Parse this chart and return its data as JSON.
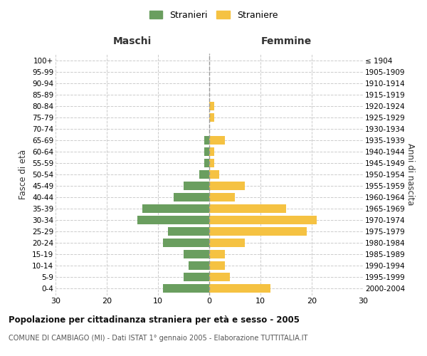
{
  "age_groups": [
    "0-4",
    "5-9",
    "10-14",
    "15-19",
    "20-24",
    "25-29",
    "30-34",
    "35-39",
    "40-44",
    "45-49",
    "50-54",
    "55-59",
    "60-64",
    "65-69",
    "70-74",
    "75-79",
    "80-84",
    "85-89",
    "90-94",
    "95-99",
    "100+"
  ],
  "birth_years": [
    "2000-2004",
    "1995-1999",
    "1990-1994",
    "1985-1989",
    "1980-1984",
    "1975-1979",
    "1970-1974",
    "1965-1969",
    "1960-1964",
    "1955-1959",
    "1950-1954",
    "1945-1949",
    "1940-1944",
    "1935-1939",
    "1930-1934",
    "1925-1929",
    "1920-1924",
    "1915-1919",
    "1910-1914",
    "1905-1909",
    "≤ 1904"
  ],
  "maschi": [
    9,
    5,
    4,
    5,
    9,
    8,
    14,
    13,
    7,
    5,
    2,
    1,
    1,
    1,
    0,
    0,
    0,
    0,
    0,
    0,
    0
  ],
  "femmine": [
    12,
    4,
    3,
    3,
    7,
    19,
    21,
    15,
    5,
    7,
    2,
    1,
    1,
    3,
    0,
    1,
    1,
    0,
    0,
    0,
    0
  ],
  "color_maschi": "#6a9e5f",
  "color_femmine": "#f5c242",
  "title": "Popolazione per cittadinanza straniera per età e sesso - 2005",
  "subtitle": "COMUNE DI CAMBIAGO (MI) - Dati ISTAT 1° gennaio 2005 - Elaborazione TUTTITALIA.IT",
  "xlabel_left": "Maschi",
  "xlabel_right": "Femmine",
  "ylabel_left": "Fasce di età",
  "ylabel_right": "Anni di nascita",
  "legend_maschi": "Stranieri",
  "legend_femmine": "Straniere",
  "xlim": 30,
  "background_color": "#ffffff",
  "grid_color": "#cccccc"
}
